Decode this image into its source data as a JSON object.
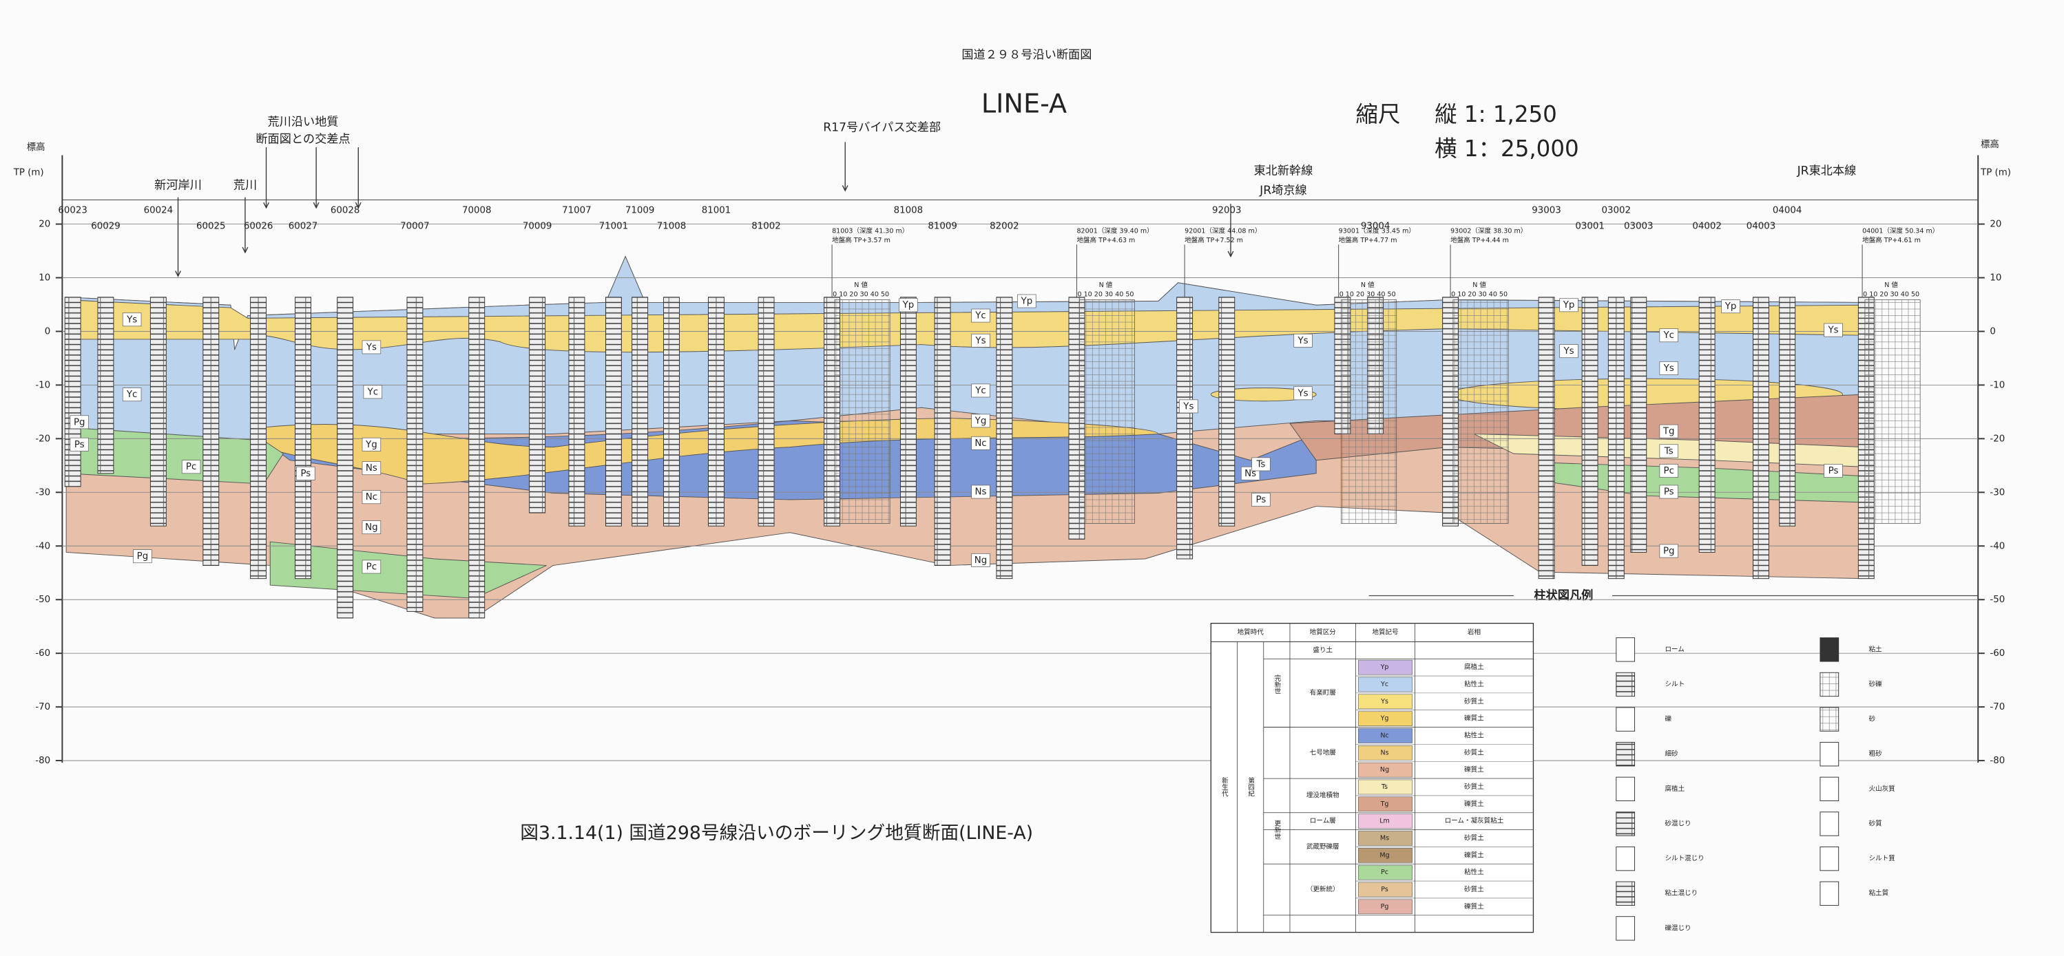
{
  "header": {
    "title": "国道２９８号沿い断面図",
    "line": "LINE-A",
    "scale_label": "縮尺",
    "scale_vertical": "縦 1:  1,250",
    "scale_horizontal": "横 1：25,000"
  },
  "axis": {
    "label": "標高",
    "unit": "TP (m)",
    "ticks": [
      20,
      10,
      0,
      -10,
      -20,
      -30,
      -40,
      -50,
      -60,
      -70,
      -80
    ]
  },
  "places": [
    "新河岸川",
    "荒川",
    "荒川沿い地質",
    "断面図との交差点",
    "R17号バイパス交差部",
    "東北新幹線",
    "JR埼京線",
    "JR東北本線"
  ],
  "boreholes": [
    "60023",
    "60029",
    "60024",
    "60025",
    "60026",
    "60027",
    "60028",
    "70007",
    "70008",
    "70009",
    "71007",
    "71001",
    "71009",
    "71008",
    "81001",
    "81002",
    "81008",
    "81009",
    "82002",
    "92003",
    "93004",
    "93003",
    "03002",
    "03001",
    "03003",
    "04002",
    "04003",
    "04004"
  ],
  "borehole_notes": [
    {
      "id": "81003（深度 41.30 m）",
      "elev": "地盤高 TP+3.57 m"
    },
    {
      "id": "82001（深度 39.40 m）",
      "elev": "地盤高 TP+4.63 m"
    },
    {
      "id": "92001（深度 44.08 m）",
      "elev": "地盤高 TP+7.52 m"
    },
    {
      "id": "93001（深度 33.45 m）",
      "elev": "地盤高 TP+4.77 m"
    },
    {
      "id": "93002（深度 38.30 m）",
      "elev": "地盤高 TP+4.44 m"
    },
    {
      "id": "04001（深度 50.34 m）",
      "elev": "地盤高 TP+4.61 m"
    }
  ],
  "n_value": {
    "label": "N 値",
    "scale": "0 10 20 30 40 50"
  },
  "layer_labels": [
    "Ys",
    "Yc",
    "Pg",
    "Ps",
    "Pc",
    "Pg",
    "Ys",
    "Yc",
    "Yg",
    "Ns",
    "Nc",
    "Ng",
    "Pc",
    "Ps",
    "Yp",
    "Yc",
    "Ys",
    "Yc",
    "Yg",
    "Nc",
    "Ns",
    "Ng",
    "Yp",
    "Ys",
    "Ys",
    "Ys",
    "Ns",
    "Ts",
    "Ps",
    "Yp",
    "Ys",
    "Yp",
    "Yc",
    "Ys",
    "Tg",
    "Ts",
    "Pc",
    "Ps",
    "Pg",
    "Ys",
    "Ps"
  ],
  "legend_table": {
    "headers": [
      "地質時代",
      "地質区分",
      "地質記号",
      "岩相"
    ],
    "era": "新生代",
    "period": "第四紀",
    "epochs": [
      "完新世",
      "更新世"
    ],
    "groups": [
      {
        "name": "盛り土",
        "units": []
      },
      {
        "name": "有楽町層",
        "units": [
          {
            "symbol": "Yp",
            "facies": "腐植土",
            "color": "#c9b6e4"
          },
          {
            "symbol": "Yc",
            "facies": "粘性土",
            "color": "#b9d2f0"
          },
          {
            "symbol": "Ys",
            "facies": "砂質土",
            "color": "#f6e17e"
          },
          {
            "symbol": "Yg",
            "facies": "礫質土",
            "color": "#f3d26a"
          }
        ]
      },
      {
        "name": "七号地層",
        "units": [
          {
            "symbol": "Nc",
            "facies": "粘性土",
            "color": "#7f98d8"
          },
          {
            "symbol": "Ns",
            "facies": "砂質土",
            "color": "#f0d080"
          },
          {
            "symbol": "Ng",
            "facies": "礫質土",
            "color": "#e8b9a0"
          }
        ]
      },
      {
        "name": "埋没堆積物",
        "units": [
          {
            "symbol": "Ts",
            "facies": "砂質土",
            "color": "#f6ecb8"
          },
          {
            "symbol": "Tg",
            "facies": "礫質土",
            "color": "#d9a48c"
          }
        ]
      },
      {
        "name": "ローム層",
        "units": [
          {
            "symbol": "Lm",
            "facies": "ローム・凝灰質粘土",
            "color": "#f0c4dc"
          }
        ]
      },
      {
        "name": "武蔵野礫層",
        "units": [
          {
            "symbol": "Ms",
            "facies": "砂質土",
            "color": "#c8b088"
          },
          {
            "symbol": "Mg",
            "facies": "礫質土",
            "color": "#b89870"
          }
        ]
      },
      {
        "name": "（更新統）",
        "units": [
          {
            "symbol": "Pc",
            "facies": "粘性土",
            "color": "#a9d89a"
          },
          {
            "symbol": "Ps",
            "facies": "砂質土",
            "color": "#e6c49a"
          },
          {
            "symbol": "Pg",
            "facies": "礫質土",
            "color": "#e2b2a6"
          }
        ]
      }
    ]
  },
  "pattern_legend": {
    "title": "柱状図凡例",
    "left": [
      "ローム",
      "シルト",
      "礫",
      "細砂",
      "腐植土",
      "砂混じり",
      "シルト混じり",
      "粘土混じり",
      "礫混じり"
    ],
    "right": [
      "粘土",
      "砂礫",
      "砂",
      "粗砂",
      "火山灰質",
      "砂質",
      "シルト質",
      "粘土質"
    ]
  },
  "caption": "図3.1.14(1)  国道298号線沿いのボーリング地質断面(LINE-A)"
}
